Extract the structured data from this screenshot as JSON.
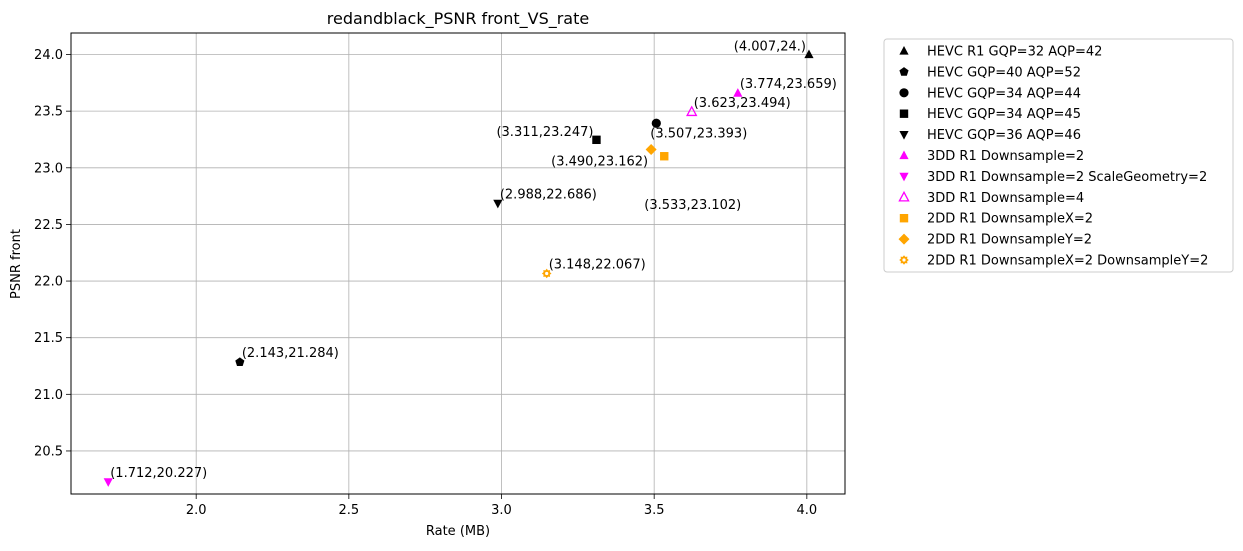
{
  "chart_data": {
    "type": "scatter",
    "title": "redandblack_PSNR front_VS_rate",
    "xlabel": "Rate (MB)",
    "ylabel": "PSNR front",
    "xlim": [
      1.59,
      4.125
    ],
    "ylim": [
      20.12,
      24.19
    ],
    "xticks": [
      2.0,
      2.5,
      3.0,
      3.5,
      4.0
    ],
    "xtick_labels": [
      "2.0",
      "2.5",
      "3.0",
      "3.5",
      "4.0"
    ],
    "yticks": [
      20.5,
      21.0,
      21.5,
      22.0,
      22.5,
      23.0,
      23.5,
      24.0
    ],
    "ytick_labels": [
      "20.5",
      "21.0",
      "21.5",
      "22.0",
      "22.5",
      "23.0",
      "23.5",
      "24.0"
    ],
    "grid": true,
    "legend_position": "outside-right-top",
    "series": [
      {
        "name": "HEVC R1 GQP=32 AQP=42",
        "marker": "triangle-up",
        "color": "#000000",
        "filled": true,
        "points": [
          {
            "x": 4.007,
            "y": 24.0,
            "label": "(4.007,24.)",
            "label_anchor": "left"
          }
        ]
      },
      {
        "name": "HEVC GQP=40 AQP=52",
        "marker": "pentagon",
        "color": "#000000",
        "filled": true,
        "points": [
          {
            "x": 2.143,
            "y": 21.284,
            "label": "(2.143,21.284)",
            "label_anchor": "right"
          }
        ]
      },
      {
        "name": "HEVC GQP=34 AQP=44",
        "marker": "circle",
        "color": "#000000",
        "filled": true,
        "points": [
          {
            "x": 3.507,
            "y": 23.393,
            "label": "(3.507,23.393)",
            "label_anchor": "below"
          }
        ]
      },
      {
        "name": "HEVC GQP=34 AQP=45",
        "marker": "square",
        "color": "#000000",
        "filled": true,
        "points": [
          {
            "x": 3.311,
            "y": 23.247,
            "label": "(3.311,23.247)",
            "label_anchor": "left"
          }
        ]
      },
      {
        "name": "HEVC GQP=36 AQP=46",
        "marker": "triangle-down",
        "color": "#000000",
        "filled": true,
        "points": [
          {
            "x": 2.988,
            "y": 22.686,
            "label": "(2.988,22.686)",
            "label_anchor": "right"
          }
        ]
      },
      {
        "name": "3DD R1 Downsample=2",
        "marker": "triangle-up",
        "color": "#ff00ff",
        "filled": true,
        "points": [
          {
            "x": 3.774,
            "y": 23.659,
            "label": "(3.774,23.659)",
            "label_anchor": "right"
          }
        ]
      },
      {
        "name": "3DD R1 Downsample=2 ScaleGeometry=2",
        "marker": "triangle-down",
        "color": "#ff00ff",
        "filled": true,
        "points": [
          {
            "x": 1.712,
            "y": 20.227,
            "label": "(1.712,20.227)",
            "label_anchor": "right"
          }
        ]
      },
      {
        "name": "3DD R1 Downsample=4",
        "marker": "triangle-up",
        "color": "#ff00ff",
        "filled": false,
        "points": [
          {
            "x": 3.623,
            "y": 23.494,
            "label": "(3.623,23.494)",
            "label_anchor": "right"
          }
        ]
      },
      {
        "name": "2DD R1 DownsampleX=2",
        "marker": "square",
        "color": "#ffa500",
        "filled": true,
        "points": [
          {
            "x": 3.533,
            "y": 23.102,
            "label": "(3.533,23.102)",
            "label_anchor": "below-right"
          }
        ]
      },
      {
        "name": "2DD R1 DownsampleY=2",
        "marker": "diamond",
        "color": "#ffa500",
        "filled": true,
        "points": [
          {
            "x": 3.49,
            "y": 23.162,
            "label": "(3.490,23.162)",
            "label_anchor": "below-left"
          }
        ]
      },
      {
        "name": "2DD R1 DownsampleX=2 DownsampleY=2",
        "marker": "gear",
        "color": "#ffa500",
        "filled": true,
        "points": [
          {
            "x": 3.148,
            "y": 22.067,
            "label": "(3.148,22.067)",
            "label_anchor": "right"
          }
        ]
      }
    ]
  }
}
